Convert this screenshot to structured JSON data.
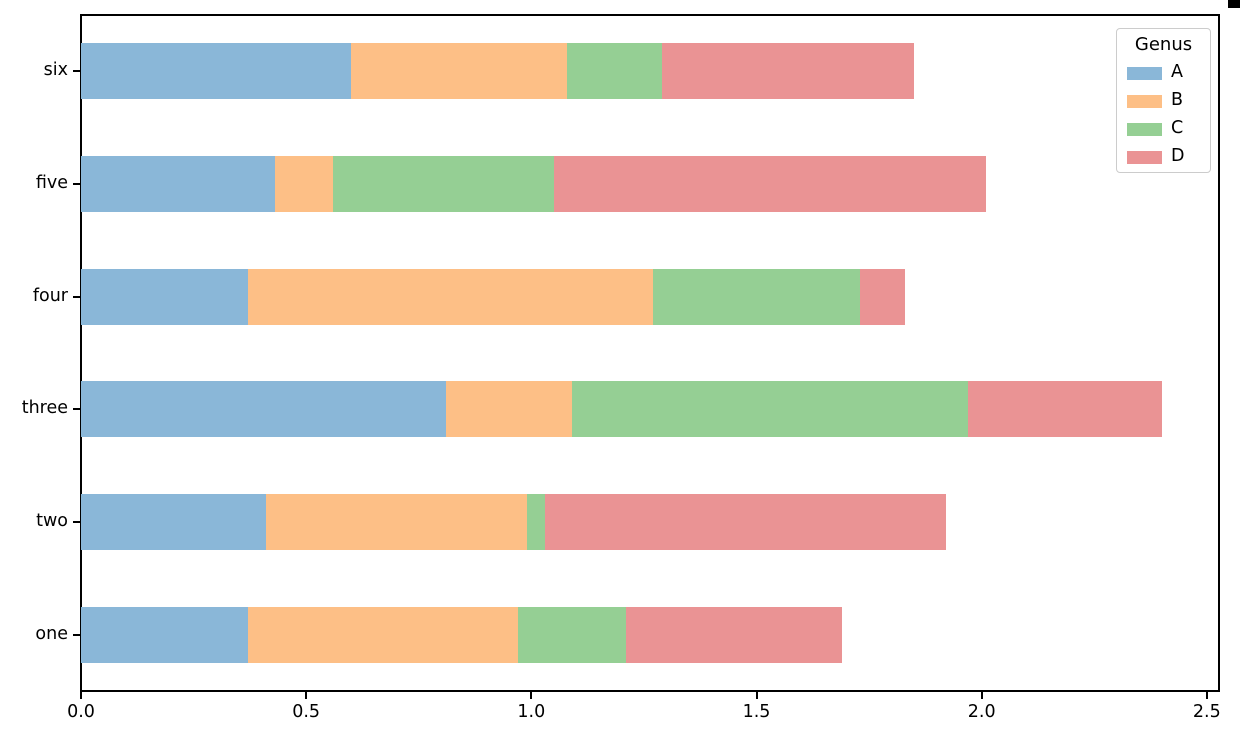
{
  "figure": {
    "background": "#ffffff",
    "axis_color": "#000000",
    "text_color": "#000000"
  },
  "chart_data": {
    "type": "bar",
    "orientation": "horizontal",
    "stacked": true,
    "title": "",
    "xlabel": "",
    "ylabel": "",
    "categories": [
      "one",
      "two",
      "three",
      "four",
      "five",
      "six"
    ],
    "series": [
      {
        "name": "A",
        "color": "#8ab7d8",
        "values": [
          0.37,
          0.41,
          0.81,
          0.37,
          0.43,
          0.6
        ]
      },
      {
        "name": "B",
        "color": "#fdbf86",
        "values": [
          0.6,
          0.58,
          0.28,
          0.9,
          0.13,
          0.48
        ]
      },
      {
        "name": "C",
        "color": "#95cf94",
        "values": [
          0.24,
          0.04,
          0.88,
          0.46,
          0.49,
          0.21
        ]
      },
      {
        "name": "D",
        "color": "#ea9394",
        "values": [
          0.48,
          0.89,
          0.43,
          0.1,
          0.96,
          0.56
        ]
      }
    ],
    "x_ticks": [
      "0.0",
      "0.5",
      "1.0",
      "1.5",
      "2.0",
      "2.5"
    ],
    "xlim": [
      0,
      2.527
    ],
    "grid": false,
    "bar_height_fraction": 0.5,
    "legend": {
      "title": "Genus",
      "position": "upper-right"
    }
  }
}
